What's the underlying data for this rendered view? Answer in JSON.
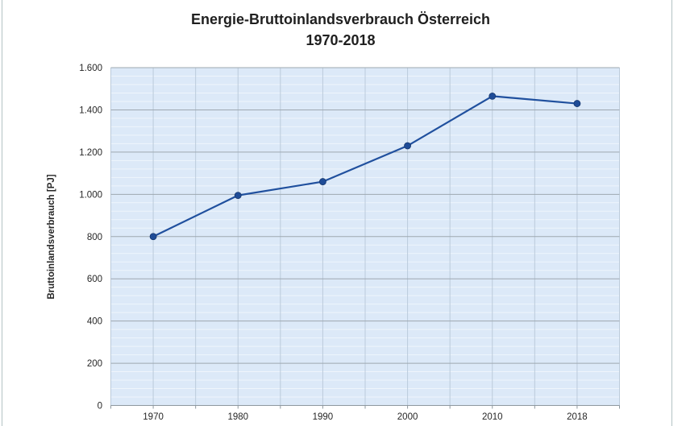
{
  "chart_data": {
    "type": "line",
    "title": "Energie-Bruttoinlandsverbrauch Österreich",
    "subtitle": "1970-2018",
    "ylabel": "Bruttoinlandsverbrauch [PJ]",
    "xlabel": "",
    "categories": [
      "1970",
      "1980",
      "1990",
      "2000",
      "2010",
      "2018"
    ],
    "values": [
      800,
      995,
      1060,
      1230,
      1465,
      1430
    ],
    "ylim": [
      0,
      1600
    ],
    "ytick_step": 200,
    "ytick_labels": [
      "0",
      "200",
      "400",
      "600",
      "800",
      "1.000",
      "1.200",
      "1.400",
      "1.600"
    ],
    "minor_ytick_step": 40,
    "grid": "major-horizontal + minor-horizontal + vertical-half-category",
    "legend": "none",
    "marker": "circle",
    "colors": {
      "line": "#20509E",
      "marker_fill": "#1F4C97",
      "marker_stroke": "#16386F",
      "plot_bg": "#DCE9F8",
      "major_grid": "#9EA8B0",
      "vertical_grid": "#BCCBDB",
      "minor_grid": "rgba(255,255,255,0.55)",
      "axis": "#8E989F",
      "text": "#262626"
    }
  }
}
